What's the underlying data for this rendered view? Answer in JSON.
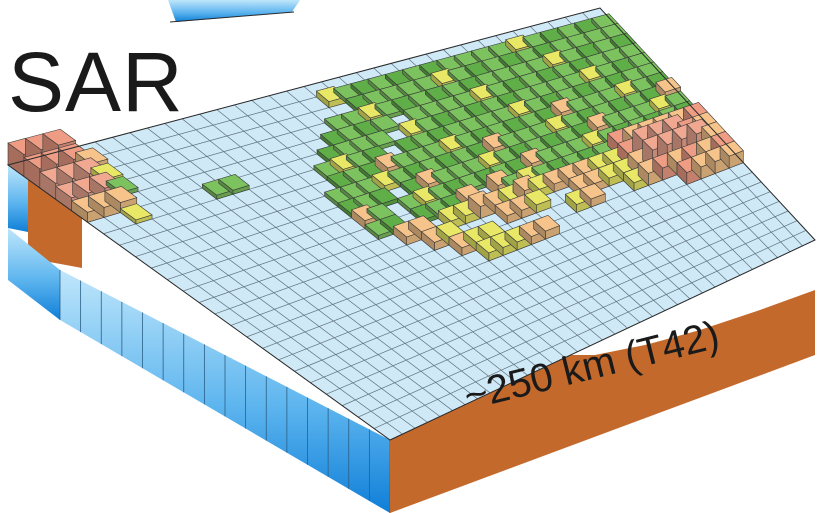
{
  "figure": {
    "title": "SAR",
    "resolution_label": "~250 km (T42)"
  },
  "colors": {
    "ocean_top": "#cfe9f7",
    "ocean_side_light": "#9fd7f5",
    "ocean_side_dark": "#1f8fe0",
    "grid_line": "#3a3a3a",
    "land_side": "#c4692c",
    "lowland": "#7cc35f",
    "lowland_dark": "#5fae48",
    "upland": "#e8e866",
    "hill": "#f6c48a",
    "mountain": "#ee9c84",
    "highland": "#f0a891"
  },
  "grid": {
    "cell_size_label": "~250 km",
    "spectral_truncation": "T42"
  }
}
